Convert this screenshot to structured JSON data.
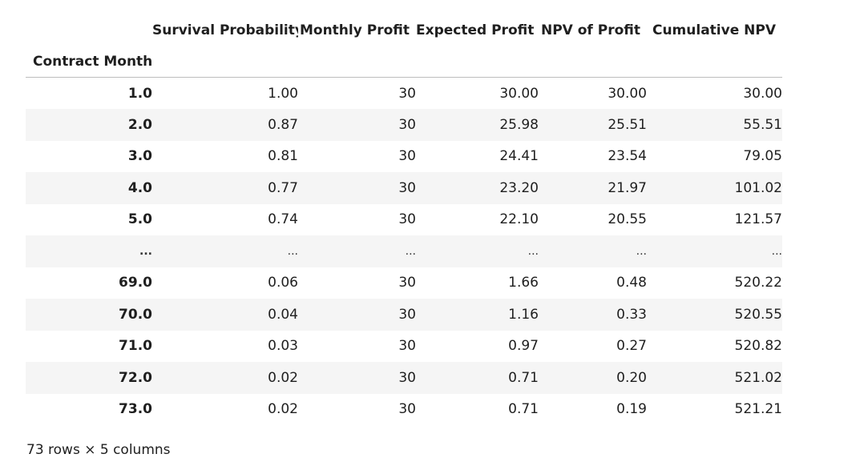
{
  "table": {
    "index_name": "Contract Month",
    "columns": [
      "Survival Probability",
      "Monthly Profit",
      "Expected Profit",
      "NPV of Profit",
      "Cumulative NPV"
    ],
    "rows": [
      {
        "index": "1.0",
        "values": [
          "1.00",
          "30",
          "30.00",
          "30.00",
          "30.00"
        ]
      },
      {
        "index": "2.0",
        "values": [
          "0.87",
          "30",
          "25.98",
          "25.51",
          "55.51"
        ]
      },
      {
        "index": "3.0",
        "values": [
          "0.81",
          "30",
          "24.41",
          "23.54",
          "79.05"
        ]
      },
      {
        "index": "4.0",
        "values": [
          "0.77",
          "30",
          "23.20",
          "21.97",
          "101.02"
        ]
      },
      {
        "index": "5.0",
        "values": [
          "0.74",
          "30",
          "22.10",
          "20.55",
          "121.57"
        ]
      },
      {
        "index": "...",
        "values": [
          "...",
          "...",
          "...",
          "...",
          "..."
        ]
      },
      {
        "index": "69.0",
        "values": [
          "0.06",
          "30",
          "1.66",
          "0.48",
          "520.22"
        ]
      },
      {
        "index": "70.0",
        "values": [
          "0.04",
          "30",
          "1.16",
          "0.33",
          "520.55"
        ]
      },
      {
        "index": "71.0",
        "values": [
          "0.03",
          "30",
          "0.97",
          "0.27",
          "520.82"
        ]
      },
      {
        "index": "72.0",
        "values": [
          "0.02",
          "30",
          "0.71",
          "0.20",
          "521.02"
        ]
      },
      {
        "index": "73.0",
        "values": [
          "0.02",
          "30",
          "0.71",
          "0.19",
          "521.21"
        ]
      }
    ]
  },
  "shape_caption": "73 rows × 5 columns"
}
